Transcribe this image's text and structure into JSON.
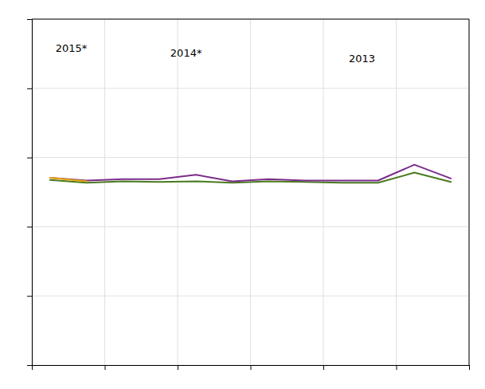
{
  "chart_data": {
    "type": "line",
    "x": [
      0,
      1,
      2,
      3,
      4,
      5,
      6,
      7,
      8,
      9,
      10,
      11
    ],
    "series": [
      {
        "color": "#4a7a20",
        "values": [
          57,
          53,
          55,
          54,
          55,
          53,
          55,
          54,
          53,
          53,
          67,
          54
        ]
      },
      {
        "color": "#7b2d8b",
        "values": [
          60,
          56,
          58,
          58,
          64,
          55,
          58,
          56,
          56,
          56,
          78,
          59
        ]
      },
      {
        "color": "#e8a800",
        "values": [
          60,
          55,
          null,
          null,
          null,
          null,
          null,
          null,
          null,
          null,
          null,
          null
        ]
      }
    ],
    "xlim": [
      -0.5,
      11.5
    ],
    "xticks": [
      -0.5,
      1.5,
      3.5,
      5.5,
      7.5,
      9.5,
      11.5
    ],
    "ylim": [
      -200,
      280
    ],
    "yticks": [
      -200,
      -104,
      -8,
      88,
      184,
      280
    ],
    "grid": true,
    "tick_labels": false,
    "annotations": [
      {
        "text": "2015*",
        "x": 0.15,
        "y": 235
      },
      {
        "text": "2014*",
        "x": 3.3,
        "y": 228
      },
      {
        "text": "2013",
        "x": 8.2,
        "y": 220
      }
    ]
  }
}
